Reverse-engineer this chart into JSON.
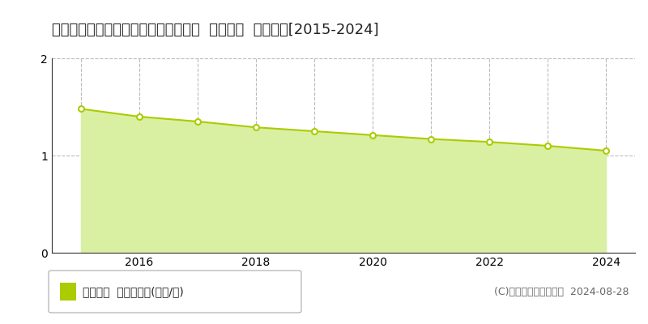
{
  "title": "北海道勇払郡安平町安平５６１番２外  地価公示  地価推移[2015-2024]",
  "years": [
    2015,
    2016,
    2017,
    2018,
    2019,
    2020,
    2021,
    2022,
    2023,
    2024
  ],
  "values": [
    1.48,
    1.4,
    1.35,
    1.29,
    1.25,
    1.21,
    1.17,
    1.14,
    1.1,
    1.05
  ],
  "ylim": [
    0,
    2
  ],
  "yticks": [
    0,
    1,
    2
  ],
  "xlim_left": 2014.5,
  "xlim_right": 2024.5,
  "line_color": "#aacc00",
  "fill_color": "#d9f0a3",
  "marker_face": "#ffffff",
  "marker_edge": "#aacc00",
  "grid_color": "#bbbbbb",
  "bg_color": "#ffffff",
  "legend_label": "地価公示  平均坪単価(万円/坪)",
  "legend_color": "#aacc00",
  "copyright_text": "(C)土地価格ドットコム  2024-08-28",
  "title_fontsize": 13,
  "axis_fontsize": 10,
  "legend_fontsize": 10,
  "copyright_fontsize": 9,
  "vgrid_years": [
    2015,
    2016,
    2017,
    2018,
    2019,
    2020,
    2021,
    2022,
    2023,
    2024
  ],
  "xtick_labels": [
    2016,
    2018,
    2020,
    2022,
    2024
  ]
}
